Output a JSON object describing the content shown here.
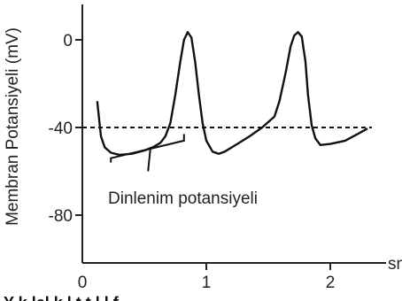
{
  "chart_data": {
    "type": "line",
    "title": "",
    "ylabel": "Membran Potansiyeli (mV)",
    "xlabel": "sn",
    "xlim": [
      0,
      2.3
    ],
    "ylim": [
      -100,
      5
    ],
    "x_ticks": [
      0,
      1,
      2
    ],
    "y_ticks": [
      0,
      -40,
      -80
    ],
    "threshold": {
      "value": -40,
      "style": "dashed"
    },
    "annotation": "Dinlenim potansiyeli",
    "caption_partial": "Y k            lel     k   l   t       t   l   l     f",
    "series": [
      {
        "points": [
          [
            0.12,
            -28
          ],
          [
            0.15,
            -44
          ],
          [
            0.18,
            -49
          ],
          [
            0.23,
            -51.5
          ],
          [
            0.3,
            -52.5
          ],
          [
            0.4,
            -52
          ],
          [
            0.5,
            -50.5
          ],
          [
            0.57,
            -49
          ],
          [
            0.63,
            -47
          ],
          [
            0.67,
            -44
          ],
          [
            0.71,
            -38
          ],
          [
            0.75,
            -25
          ],
          [
            0.79,
            -10
          ],
          [
            0.82,
            0
          ],
          [
            0.85,
            3.5
          ],
          [
            0.88,
            1
          ],
          [
            0.91,
            -10
          ],
          [
            0.94,
            -25
          ],
          [
            0.97,
            -38
          ],
          [
            1.0,
            -46
          ],
          [
            1.05,
            -51
          ],
          [
            1.1,
            -52
          ],
          [
            1.15,
            -51
          ],
          [
            1.25,
            -47.5
          ],
          [
            1.35,
            -44
          ],
          [
            1.45,
            -40
          ],
          [
            1.55,
            -35
          ],
          [
            1.59,
            -28
          ],
          [
            1.64,
            -15
          ],
          [
            1.68,
            -3
          ],
          [
            1.71,
            2
          ],
          [
            1.74,
            3.5
          ],
          [
            1.77,
            1.5
          ],
          [
            1.8,
            -10
          ],
          [
            1.82,
            -25
          ],
          [
            1.85,
            -39
          ],
          [
            1.88,
            -45
          ],
          [
            1.92,
            -48
          ],
          [
            2.0,
            -47.5
          ],
          [
            2.12,
            -46
          ],
          [
            2.22,
            -43
          ],
          [
            2.3,
            -40.5
          ]
        ]
      }
    ],
    "bracket": {
      "points": [
        [
          0.23,
          -56
        ],
        [
          0.23,
          -54
        ],
        [
          0.82,
          -46
        ],
        [
          0.82,
          -43
        ]
      ],
      "pointer": [
        [
          0.55,
          -49
        ],
        [
          0.53,
          -60
        ]
      ]
    }
  }
}
